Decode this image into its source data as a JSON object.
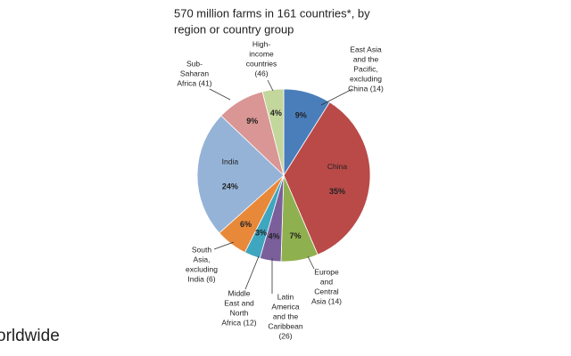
{
  "chart_data": {
    "type": "pie",
    "title_lines": [
      "570 million farms in 161 countries*, by",
      "region or country group"
    ],
    "categories": [
      [
        "East Asia",
        "and the",
        "Pacific,",
        "excluding",
        "China (14)"
      ],
      [
        "China"
      ],
      [
        "Europe",
        "and",
        "Central",
        "Asia (14)"
      ],
      [
        "Latin",
        "America",
        "and the",
        "Caribbean",
        "(26)"
      ],
      [
        "Middle",
        "East and",
        "North",
        "Africa (12)"
      ],
      [
        "South",
        "Asia,",
        "excluding",
        "India (6)"
      ],
      [
        "India"
      ],
      [
        "Sub-",
        "Saharan",
        "Africa (41)"
      ],
      [
        "High-",
        "income",
        "countries",
        "(46)"
      ]
    ],
    "values": [
      9,
      35,
      7,
      4,
      3,
      6,
      24,
      9,
      4
    ],
    "value_labels": [
      "9%",
      "35%",
      "7%",
      "4%",
      "3%",
      "6%",
      "24%",
      "9%",
      "4%"
    ],
    "colors": [
      "#4a7ebb",
      "#b94a48",
      "#8fb04f",
      "#7a5f9a",
      "#3fa6bf",
      "#e8893a",
      "#95b3d7",
      "#d99694",
      "#c3d69b"
    ],
    "footer_text": "orldwide"
  }
}
